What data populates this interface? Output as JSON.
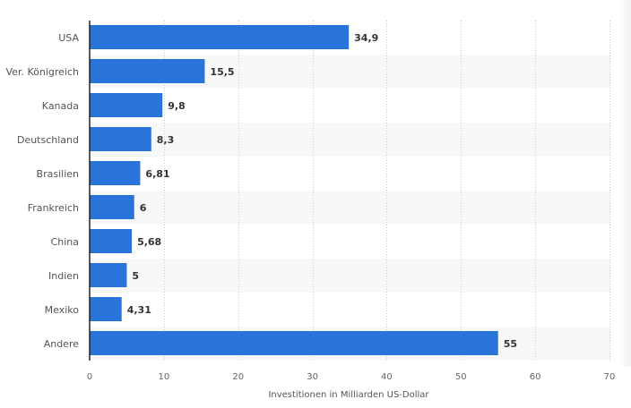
{
  "chart_data": {
    "type": "bar",
    "orientation": "horizontal",
    "categories": [
      "USA",
      "Ver. Königreich",
      "Kanada",
      "Deutschland",
      "Brasilien",
      "Frankreich",
      "China",
      "Indien",
      "Mexiko",
      "Andere"
    ],
    "values": [
      34.9,
      15.5,
      9.8,
      8.3,
      6.81,
      6,
      5.68,
      5,
      4.31,
      55
    ],
    "value_labels": [
      "34,9",
      "15,5",
      "9,8",
      "8,3",
      "6,81",
      "6",
      "5,68",
      "5",
      "4,31",
      "55"
    ],
    "title": "",
    "xlabel": "Investitionen in Milliarden US-Dollar",
    "ylabel": "",
    "xlim": [
      0,
      70
    ],
    "xticks": [
      0,
      10,
      20,
      30,
      40,
      50,
      60,
      70
    ],
    "xtick_labels": [
      "0",
      "10",
      "20",
      "30",
      "40",
      "50",
      "60",
      "70"
    ],
    "grid": true,
    "legend": "none"
  },
  "colors": {
    "bar": "#2874d9",
    "band": "#f8f8f8",
    "grid": "#c8c8c8",
    "axis": "#222222"
  }
}
